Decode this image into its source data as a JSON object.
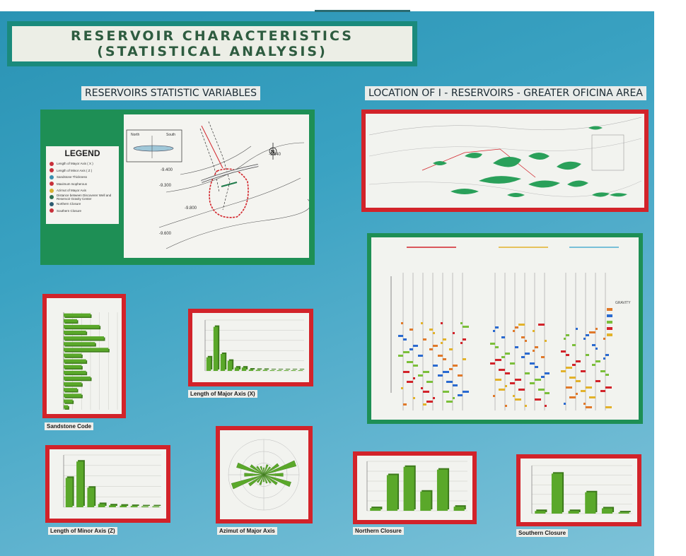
{
  "title": {
    "line1": "RESERVOIR CHARACTERISTICS",
    "line2": "(STATISTICAL ANALYSIS)"
  },
  "headings": {
    "left": "RESERVOIRS STATISTIC VARIABLES",
    "right": "LOCATION OF I - RESERVOIRS - GREATER OFICINA AREA"
  },
  "legend": {
    "title": "LEGEND",
    "items": [
      {
        "label": "Length of Mayor Axis ( X )",
        "color": "#c8303a"
      },
      {
        "label": "Length of Minor Axis ( Z )",
        "color": "#c8303a"
      },
      {
        "label": "Sandstone Thickness",
        "color": "#3a8fb0"
      },
      {
        "label": "Maximum Isopherous",
        "color": "#c8303a"
      },
      {
        "label": "Azimut of Mayor Axis",
        "color": "#d8b030"
      },
      {
        "label": "Distance between Discoverer Well and Reservoir Gravity Center",
        "color": "#2c7050"
      },
      {
        "label": "Northern Closure",
        "color": "#2c5a70"
      },
      {
        "label": "Southern Closure",
        "color": "#c8303a"
      }
    ]
  },
  "map": {
    "north": "N",
    "north_label": "North",
    "south_label": "South"
  },
  "captions": {
    "sandstone": "Sandstone Code",
    "major": "Length of Major Axis (X)",
    "minor": "Length of Minor Axis (Z)",
    "azimut": "Azimut of Major Axis",
    "northern": "Northern Closure",
    "southern": "Southern Closure"
  },
  "gravity_legend": {
    "title": "GRAVITY"
  },
  "colors": {
    "bar_green": "#5aa82a",
    "frame_red": "#d2232a",
    "frame_green": "#1e8f55",
    "board": "#3aa2c2"
  },
  "chart_data": [
    {
      "type": "bar",
      "name_ref": "sandstone",
      "orientation": "horizontal",
      "values": [
        6,
        3,
        8,
        5,
        9,
        7,
        10,
        4,
        5,
        4,
        5,
        6,
        4,
        3,
        4,
        2,
        1
      ],
      "xlim": [
        0,
        12
      ]
    },
    {
      "type": "bar",
      "name_ref": "major",
      "values": [
        4,
        13,
        5,
        3,
        1,
        1,
        0.4,
        0.3,
        0.3,
        0.2,
        0.2,
        0.2,
        0.2,
        0.2
      ],
      "ylim": [
        0,
        15
      ]
    },
    {
      "type": "bar",
      "name_ref": "minor",
      "values": [
        9,
        14,
        6,
        1,
        0.6,
        0.5,
        0.4,
        0.3,
        0.3
      ],
      "ylim": [
        0,
        16
      ]
    },
    {
      "type": "bar",
      "name_ref": "northern",
      "values": [
        1,
        13,
        16,
        7,
        15,
        1.5
      ],
      "ylim": [
        0,
        18
      ]
    },
    {
      "type": "bar",
      "name_ref": "southern",
      "values": [
        1,
        15,
        1,
        8,
        2,
        0.5
      ],
      "ylim": [
        0,
        18
      ]
    },
    {
      "type": "rose",
      "name_ref": "azimut",
      "petals": [
        {
          "deg": 70,
          "len": 0.95
        },
        {
          "deg": 110,
          "len": 0.8
        },
        {
          "deg": 90,
          "len": 0.55
        },
        {
          "deg": 55,
          "len": 0.5
        },
        {
          "deg": 125,
          "len": 0.45
        },
        {
          "deg": 160,
          "len": 0.25
        },
        {
          "deg": 20,
          "len": 0.3
        },
        {
          "deg": 0,
          "len": 0.2
        },
        {
          "deg": 140,
          "len": 0.3
        },
        {
          "deg": 40,
          "len": 0.28
        }
      ]
    }
  ]
}
